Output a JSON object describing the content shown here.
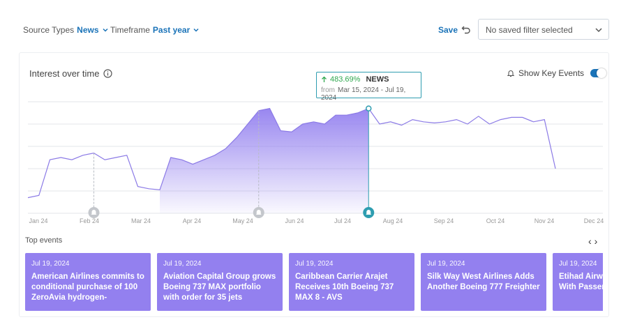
{
  "filters": {
    "source_label": "Source Types",
    "source_value": "News",
    "timeframe_label": "Timeframe",
    "timeframe_value": "Past year"
  },
  "toolbar": {
    "save_label": "Save",
    "saved_filter_placeholder": "No saved filter selected"
  },
  "chart_card": {
    "title": "Interest over time",
    "key_events_label": "Show Key Events",
    "key_events_on": true
  },
  "tooltip": {
    "change": "483.69%",
    "series": "NEWS",
    "from_label": "from",
    "range": "Mar 15, 2024 - Jul 19, 2024"
  },
  "colors": {
    "accent": "#1a73b8",
    "series_line": "#8b7ae6",
    "area_fill": "#9380ef",
    "event_card": "#9380ef",
    "highlight": "#2e9db0",
    "positive": "#2fa84f"
  },
  "chart_data": {
    "type": "area",
    "x_ticks": [
      "Jan 24",
      "Feb 24",
      "Mar 24",
      "Apr 24",
      "May 24",
      "Jun 24",
      "Jul 24",
      "Aug 24",
      "Sep 24",
      "Oct 24",
      "Nov 24",
      "Dec 24"
    ],
    "ylim": [
      0,
      5
    ],
    "grid": true,
    "series": [
      {
        "values": [
          0.7,
          0.8,
          2.4,
          2.5,
          2.4,
          2.6,
          2.7,
          2.4,
          2.5,
          2.6,
          1.2,
          1.1,
          1.05,
          2.5,
          2.4,
          2.2,
          2.4,
          2.6,
          2.9,
          3.4,
          4.0,
          4.6,
          4.7,
          3.7,
          3.65,
          4.0,
          4.1,
          4.0,
          4.4,
          4.4,
          4.5,
          4.7,
          4.0,
          4.1,
          3.95,
          4.2,
          4.1,
          4.05,
          4.1,
          4.2,
          4.0,
          4.35,
          4.0,
          4.2,
          4.3,
          4.3,
          4.1,
          4.2,
          2.0
        ]
      }
    ],
    "highlight_range": [
      "Mar 15, 2024",
      "Jul 19, 2024"
    ],
    "key_event_markers": [
      "Feb 24",
      "May 24",
      "Jul 24"
    ]
  },
  "top_events": {
    "label": "Top events",
    "items": [
      {
        "date": "Jul 19, 2024",
        "text": "American Airlines commits to conditional purchase of 100 ZeroAvia hydrogen-powered…"
      },
      {
        "date": "Jul 19, 2024",
        "text": "Aviation Capital Group grows Boeing 737 MAX portfolio with order for 35 jets"
      },
      {
        "date": "Jul 19, 2024",
        "text": "Caribbean Carrier Arajet Receives 10th Boeing 737 MAX 8 - AVS"
      },
      {
        "date": "Jul 19, 2024",
        "text": "Silk Way West Airlines Adds Another Boeing 777 Freighter"
      },
      {
        "date": "Jul 19, 2024",
        "text": "Etihad Airways Milestone With Passengers In"
      }
    ]
  }
}
